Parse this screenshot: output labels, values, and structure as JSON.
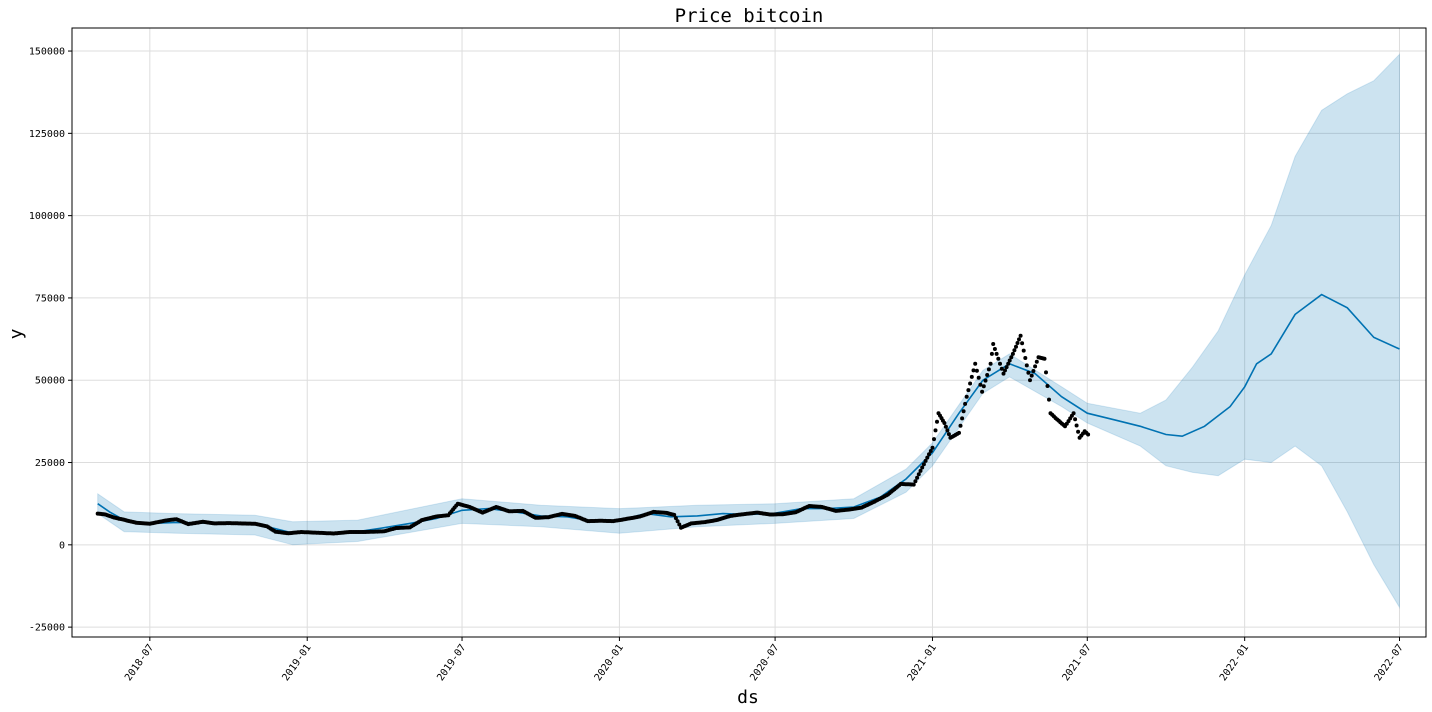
{
  "chart_data": {
    "type": "line",
    "title": "Price bitcoin",
    "xlabel": "ds",
    "ylabel": "y",
    "grid": true,
    "xlim": [
      "2018-04-01",
      "2022-08-01"
    ],
    "ylim": [
      -28000,
      157000
    ],
    "x_ticks": [
      "2018-07",
      "2019-01",
      "2019-07",
      "2020-01",
      "2020-07",
      "2021-01",
      "2021-07",
      "2022-01",
      "2022-07"
    ],
    "y_ticks": [
      -25000,
      0,
      25000,
      50000,
      75000,
      100000,
      125000,
      150000
    ],
    "colors": {
      "forecast": "#0072B2",
      "interval": "#0072B2",
      "observed": "#000000",
      "grid": "#dddddd"
    },
    "series": [
      {
        "kind": "forecast_line",
        "points": [
          [
            "2018-05-01",
            12500
          ],
          [
            "2018-05-15",
            10000
          ],
          [
            "2018-06-01",
            7500
          ],
          [
            "2018-07-01",
            6500
          ],
          [
            "2018-08-01",
            6800
          ],
          [
            "2018-09-01",
            6600
          ],
          [
            "2018-10-01",
            6500
          ],
          [
            "2018-11-01",
            6200
          ],
          [
            "2018-11-20",
            5200
          ],
          [
            "2018-12-15",
            3600
          ],
          [
            "2019-01-01",
            3700
          ],
          [
            "2019-02-01",
            3600
          ],
          [
            "2019-03-01",
            4000
          ],
          [
            "2019-04-01",
            5200
          ],
          [
            "2019-05-01",
            6500
          ],
          [
            "2019-06-01",
            8000
          ],
          [
            "2019-07-01",
            10500
          ],
          [
            "2019-08-01",
            11000
          ],
          [
            "2019-09-01",
            10000
          ],
          [
            "2019-10-01",
            8800
          ],
          [
            "2019-11-01",
            8500
          ],
          [
            "2019-12-01",
            7200
          ],
          [
            "2020-01-01",
            7500
          ],
          [
            "2020-02-01",
            9500
          ],
          [
            "2020-03-01",
            8500
          ],
          [
            "2020-04-01",
            8800
          ],
          [
            "2020-05-01",
            9500
          ],
          [
            "2020-06-01",
            9200
          ],
          [
            "2020-07-01",
            9600
          ],
          [
            "2020-08-01",
            11000
          ],
          [
            "2020-09-01",
            11000
          ],
          [
            "2020-10-01",
            11500
          ],
          [
            "2020-11-01",
            14500
          ],
          [
            "2020-12-01",
            20000
          ],
          [
            "2021-01-01",
            28000
          ],
          [
            "2021-02-01",
            40000
          ],
          [
            "2021-03-01",
            50000
          ],
          [
            "2021-04-01",
            55000
          ],
          [
            "2021-05-01",
            52000
          ],
          [
            "2021-06-01",
            45000
          ],
          [
            "2021-07-01",
            40000
          ],
          [
            "2021-08-01",
            38000
          ],
          [
            "2021-09-01",
            36000
          ],
          [
            "2021-10-01",
            33500
          ],
          [
            "2021-10-20",
            33000
          ],
          [
            "2021-11-15",
            36000
          ],
          [
            "2021-12-15",
            42000
          ],
          [
            "2022-01-01",
            48000
          ],
          [
            "2022-01-15",
            55000
          ],
          [
            "2022-02-01",
            58000
          ],
          [
            "2022-03-01",
            70000
          ],
          [
            "2022-04-01",
            76000
          ],
          [
            "2022-05-01",
            72000
          ],
          [
            "2022-06-01",
            63000
          ],
          [
            "2022-07-01",
            59500
          ]
        ]
      },
      {
        "kind": "interval_upper",
        "points": [
          [
            "2018-05-01",
            15500
          ],
          [
            "2018-06-01",
            10000
          ],
          [
            "2018-08-01",
            9500
          ],
          [
            "2018-11-01",
            9000
          ],
          [
            "2018-12-15",
            7000
          ],
          [
            "2019-03-01",
            7500
          ],
          [
            "2019-07-01",
            14000
          ],
          [
            "2019-10-01",
            12000
          ],
          [
            "2020-01-01",
            11000
          ],
          [
            "2020-04-01",
            12000
          ],
          [
            "2020-07-01",
            12500
          ],
          [
            "2020-10-01",
            14000
          ],
          [
            "2020-12-01",
            23000
          ],
          [
            "2021-01-01",
            31000
          ],
          [
            "2021-03-01",
            53000
          ],
          [
            "2021-04-01",
            58000
          ],
          [
            "2021-06-01",
            48000
          ],
          [
            "2021-07-01",
            43000
          ],
          [
            "2021-09-01",
            40000
          ],
          [
            "2021-10-01",
            44000
          ],
          [
            "2021-11-01",
            54000
          ],
          [
            "2021-12-01",
            65000
          ],
          [
            "2022-01-01",
            82000
          ],
          [
            "2022-02-01",
            97000
          ],
          [
            "2022-03-01",
            118000
          ],
          [
            "2022-04-01",
            132000
          ],
          [
            "2022-05-01",
            137000
          ],
          [
            "2022-06-01",
            141000
          ],
          [
            "2022-07-01",
            149000
          ]
        ]
      },
      {
        "kind": "interval_lower",
        "points": [
          [
            "2018-05-01",
            9500
          ],
          [
            "2018-06-01",
            4000
          ],
          [
            "2018-08-01",
            3500
          ],
          [
            "2018-11-01",
            3000
          ],
          [
            "2018-12-15",
            0
          ],
          [
            "2019-03-01",
            1000
          ],
          [
            "2019-07-01",
            6500
          ],
          [
            "2019-10-01",
            5500
          ],
          [
            "2020-01-01",
            3500
          ],
          [
            "2020-04-01",
            5500
          ],
          [
            "2020-07-01",
            6500
          ],
          [
            "2020-10-01",
            8000
          ],
          [
            "2020-12-01",
            16000
          ],
          [
            "2021-01-01",
            24000
          ],
          [
            "2021-03-01",
            46000
          ],
          [
            "2021-04-01",
            51000
          ],
          [
            "2021-06-01",
            42000
          ],
          [
            "2021-07-01",
            37000
          ],
          [
            "2021-09-01",
            30000
          ],
          [
            "2021-10-01",
            24000
          ],
          [
            "2021-11-01",
            22000
          ],
          [
            "2021-12-01",
            21000
          ],
          [
            "2022-01-01",
            26000
          ],
          [
            "2022-02-01",
            25000
          ],
          [
            "2022-03-01",
            30000
          ],
          [
            "2022-04-01",
            24000
          ],
          [
            "2022-05-01",
            10000
          ],
          [
            "2022-06-01",
            -6000
          ],
          [
            "2022-07-01",
            -19000
          ]
        ]
      },
      {
        "kind": "observed",
        "points": [
          [
            "2018-05-01",
            9500
          ],
          [
            "2018-05-10",
            9200
          ],
          [
            "2018-05-20",
            8300
          ],
          [
            "2018-06-01",
            7600
          ],
          [
            "2018-06-15",
            6700
          ],
          [
            "2018-07-01",
            6400
          ],
          [
            "2018-07-20",
            7400
          ],
          [
            "2018-08-01",
            7800
          ],
          [
            "2018-08-15",
            6300
          ],
          [
            "2018-09-01",
            7000
          ],
          [
            "2018-09-15",
            6500
          ],
          [
            "2018-10-01",
            6600
          ],
          [
            "2018-10-15",
            6500
          ],
          [
            "2018-11-01",
            6400
          ],
          [
            "2018-11-15",
            5600
          ],
          [
            "2018-11-25",
            4000
          ],
          [
            "2018-12-10",
            3500
          ],
          [
            "2018-12-25",
            3900
          ],
          [
            "2019-01-10",
            3700
          ],
          [
            "2019-02-01",
            3450
          ],
          [
            "2019-02-20",
            3900
          ],
          [
            "2019-03-10",
            3900
          ],
          [
            "2019-04-01",
            4100
          ],
          [
            "2019-04-15",
            5100
          ],
          [
            "2019-05-01",
            5300
          ],
          [
            "2019-05-15",
            7500
          ],
          [
            "2019-06-01",
            8600
          ],
          [
            "2019-06-15",
            9000
          ],
          [
            "2019-06-26",
            12500
          ],
          [
            "2019-07-10",
            11500
          ],
          [
            "2019-07-25",
            9800
          ],
          [
            "2019-08-10",
            11500
          ],
          [
            "2019-08-25",
            10200
          ],
          [
            "2019-09-10",
            10300
          ],
          [
            "2019-09-25",
            8200
          ],
          [
            "2019-10-10",
            8400
          ],
          [
            "2019-10-26",
            9400
          ],
          [
            "2019-11-10",
            8800
          ],
          [
            "2019-11-25",
            7200
          ],
          [
            "2019-12-10",
            7300
          ],
          [
            "2019-12-25",
            7200
          ],
          [
            "2020-01-10",
            7900
          ],
          [
            "2020-01-25",
            8600
          ],
          [
            "2020-02-10",
            10000
          ],
          [
            "2020-02-25",
            9700
          ],
          [
            "2020-03-05",
            9100
          ],
          [
            "2020-03-13",
            5200
          ],
          [
            "2020-03-25",
            6500
          ],
          [
            "2020-04-10",
            6900
          ],
          [
            "2020-04-25",
            7600
          ],
          [
            "2020-05-10",
            8800
          ],
          [
            "2020-05-25",
            9300
          ],
          [
            "2020-06-10",
            9800
          ],
          [
            "2020-06-25",
            9200
          ],
          [
            "2020-07-10",
            9300
          ],
          [
            "2020-07-25",
            9900
          ],
          [
            "2020-08-10",
            11800
          ],
          [
            "2020-08-25",
            11500
          ],
          [
            "2020-09-10",
            10300
          ],
          [
            "2020-09-25",
            10700
          ],
          [
            "2020-10-10",
            11300
          ],
          [
            "2020-10-25",
            13100
          ],
          [
            "2020-11-10",
            15300
          ],
          [
            "2020-11-25",
            18500
          ],
          [
            "2020-12-10",
            18300
          ],
          [
            "2020-12-20",
            23500
          ],
          [
            "2021-01-01",
            29500
          ],
          [
            "2021-01-08",
            40000
          ],
          [
            "2021-01-15",
            37000
          ],
          [
            "2021-01-22",
            32500
          ],
          [
            "2021-02-01",
            34000
          ],
          [
            "2021-02-10",
            45000
          ],
          [
            "2021-02-20",
            55000
          ],
          [
            "2021-02-28",
            46500
          ],
          [
            "2021-03-10",
            55000
          ],
          [
            "2021-03-13",
            61000
          ],
          [
            "2021-03-25",
            52000
          ],
          [
            "2021-04-05",
            58000
          ],
          [
            "2021-04-14",
            63500
          ],
          [
            "2021-04-25",
            50000
          ],
          [
            "2021-05-05",
            57000
          ],
          [
            "2021-05-12",
            56500
          ],
          [
            "2021-05-19",
            40000
          ],
          [
            "2021-05-25",
            38500
          ],
          [
            "2021-06-05",
            36000
          ],
          [
            "2021-06-15",
            40000
          ],
          [
            "2021-06-22",
            32500
          ],
          [
            "2021-06-28",
            34500
          ],
          [
            "2021-07-02",
            33500
          ]
        ]
      }
    ]
  }
}
